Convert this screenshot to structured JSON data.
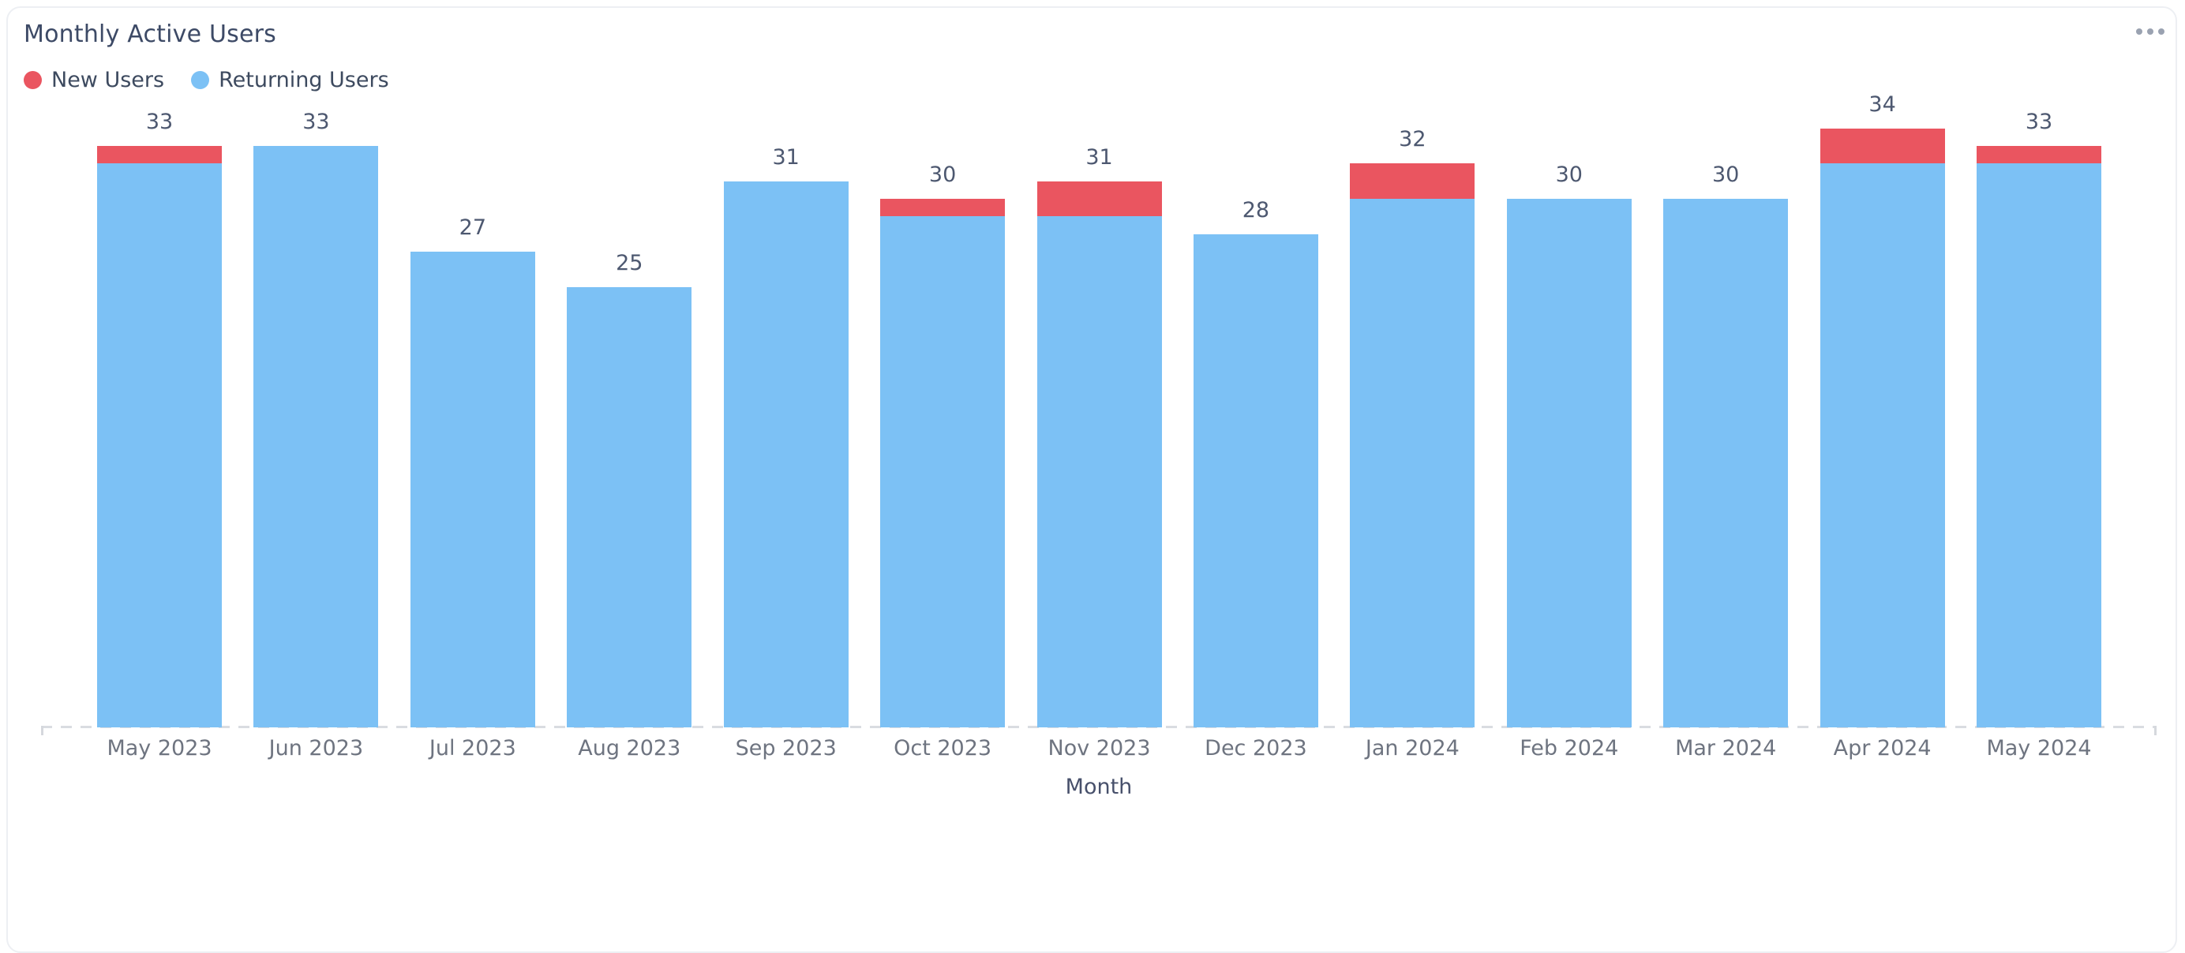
{
  "header": {
    "title": "Monthly Active Users",
    "menu_icon": "ellipsis-icon"
  },
  "legend": {
    "items": [
      {
        "label": "New Users",
        "color": "#ea5560"
      },
      {
        "label": "Returning Users",
        "color": "#7cc1f5"
      }
    ]
  },
  "chart_data": {
    "type": "bar",
    "stacked": true,
    "title": "Monthly Active Users",
    "categories": [
      "May 2023",
      "Jun 2023",
      "Jul 2023",
      "Aug 2023",
      "Sep 2023",
      "Oct 2023",
      "Nov 2023",
      "Dec 2023",
      "Jan 2024",
      "Feb 2024",
      "Mar 2024",
      "Apr 2024",
      "May 2024"
    ],
    "series": [
      {
        "name": "New Users",
        "color": "#ea5560",
        "values": [
          1,
          0,
          0,
          0,
          0,
          1,
          2,
          0,
          2,
          0,
          0,
          2,
          1
        ]
      },
      {
        "name": "Returning Users",
        "color": "#7cc1f5",
        "values": [
          32,
          33,
          27,
          25,
          31,
          29,
          29,
          28,
          30,
          30,
          30,
          32,
          32
        ]
      }
    ],
    "totals": [
      33,
      33,
      27,
      25,
      31,
      30,
      31,
      28,
      32,
      30,
      30,
      34,
      33
    ],
    "xlabel": "Month",
    "ylabel": "",
    "ylim": [
      0,
      34
    ],
    "grid": false,
    "value_labels": true,
    "legend_position": "top-left"
  }
}
